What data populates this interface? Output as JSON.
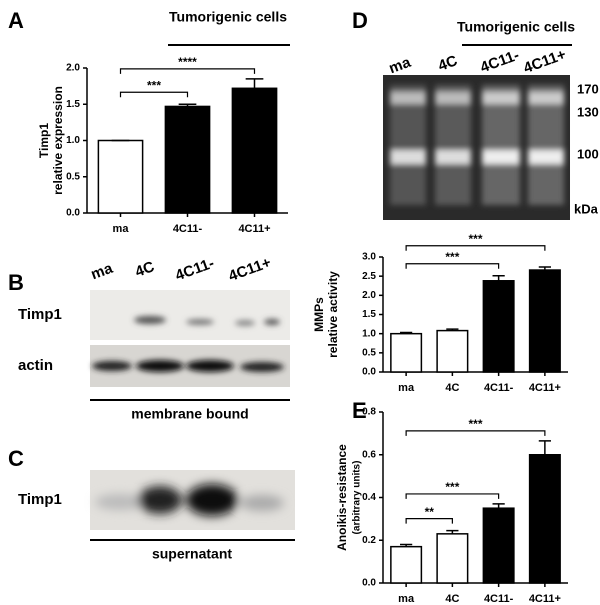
{
  "chart_data": [
    {
      "type": "bar",
      "panel": "A",
      "header": "Tumorigenic cells",
      "ylabel": [
        "Timp1",
        "relative expression"
      ],
      "categories": [
        "ma",
        "4C11-",
        "4C11+"
      ],
      "values": [
        1.0,
        1.47,
        1.72
      ],
      "errors": [
        0,
        0.03,
        0.13
      ],
      "colors": [
        "#ffffff",
        "#000000",
        "#000000"
      ],
      "ylim": [
        0,
        2.0
      ],
      "yticks": [
        {
          "value": 0,
          "label": "0.0"
        },
        {
          "value": 0.5,
          "label": "0.5"
        },
        {
          "value": 1.0,
          "label": "1.0"
        },
        {
          "value": 1.5,
          "label": "1.5"
        },
        {
          "value": 2.0,
          "label": "2.0"
        }
      ],
      "significance": [
        {
          "from": 0,
          "to": 1,
          "label": "***"
        },
        {
          "from": 0,
          "to": 2,
          "label": "****"
        }
      ]
    },
    {
      "type": "bar",
      "ylabel": [
        "MMPs",
        "relative activity"
      ],
      "categories": [
        "ma",
        "4C",
        "4C11-",
        "4C11+"
      ],
      "values": [
        1.0,
        1.08,
        2.38,
        2.66
      ],
      "errors": [
        0.03,
        0.04,
        0.13,
        0.08
      ],
      "colors": [
        "#ffffff",
        "#ffffff",
        "#000000",
        "#000000"
      ],
      "ylim": [
        0,
        3.0
      ],
      "yticks": [
        {
          "value": 0,
          "label": "0.0"
        },
        {
          "value": 0.5,
          "label": "0.5"
        },
        {
          "value": 1.0,
          "label": "1.0"
        },
        {
          "value": 1.5,
          "label": "1.5"
        },
        {
          "value": 2.0,
          "label": "2.0"
        },
        {
          "value": 2.5,
          "label": "2.5"
        },
        {
          "value": 3.0,
          "label": "3.0"
        }
      ],
      "significance": [
        {
          "from": 0,
          "to": 2,
          "label": "***"
        },
        {
          "from": 0,
          "to": 3,
          "label": "***"
        }
      ]
    },
    {
      "type": "bar",
      "panel": "E",
      "ylabel": [
        "Anoikis-resistance",
        "(arbitrary units)"
      ],
      "categories": [
        "ma",
        "4C",
        "4C11-",
        "4C11+"
      ],
      "values": [
        0.17,
        0.23,
        0.35,
        0.6
      ],
      "errors": [
        0.01,
        0.015,
        0.02,
        0.065
      ],
      "colors": [
        "#ffffff",
        "#ffffff",
        "#000000",
        "#000000"
      ],
      "ylim": [
        0,
        0.8
      ],
      "yticks": [
        {
          "value": 0,
          "label": "0.0"
        },
        {
          "value": 0.2,
          "label": "0.2"
        },
        {
          "value": 0.4,
          "label": "0.4"
        },
        {
          "value": 0.6,
          "label": "0.6"
        },
        {
          "value": 0.8,
          "label": "0.8"
        }
      ],
      "significance": [
        {
          "from": 0,
          "to": 1,
          "label": "**"
        },
        {
          "from": 0,
          "to": 2,
          "label": "***"
        },
        {
          "from": 0,
          "to": 3,
          "label": "***"
        }
      ]
    }
  ],
  "blot_b": {
    "panel": "B",
    "lanes": [
      "ma",
      "4C",
      "4C11-",
      "4C11+"
    ],
    "rows": [
      "Timp1",
      "actin"
    ],
    "caption": "membrane bound"
  },
  "blot_c": {
    "panel": "C",
    "rows": [
      "Timp1"
    ],
    "caption": "supernatant"
  },
  "gel_d": {
    "panel": "D",
    "header": "Tumorigenic cells",
    "lanes": [
      "ma",
      "4C",
      "4C11-",
      "4C11+"
    ],
    "markers": [
      "170",
      "130",
      "100"
    ],
    "unit": "kDa"
  }
}
